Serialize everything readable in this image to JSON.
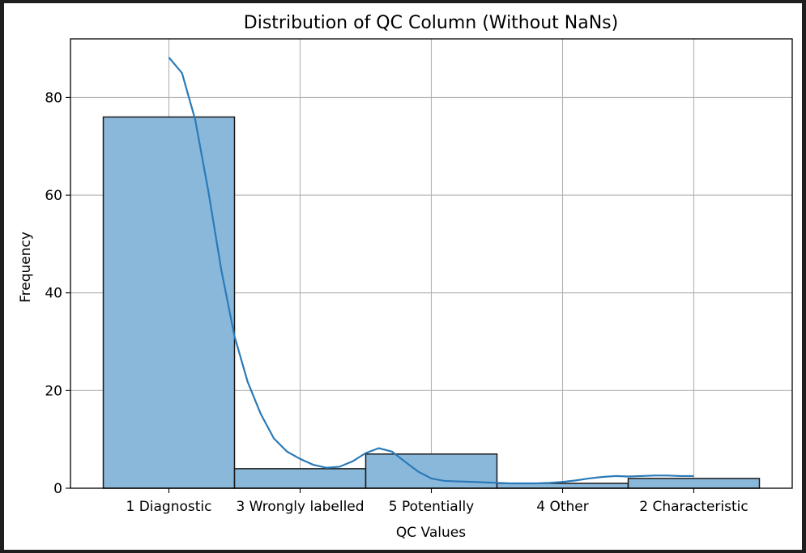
{
  "chart_data": {
    "type": "bar",
    "title": "Distribution of QC Column (Without NaNs)",
    "xlabel": "QC Values",
    "ylabel": "Frequency",
    "categories": [
      "1 Diagnostic",
      "3 Wrongly labelled",
      "5 Potentially",
      "4 Other",
      "2 Characteristic"
    ],
    "values": [
      76,
      4,
      7,
      1,
      2
    ],
    "ylim": [
      0,
      92
    ],
    "yticks": [
      0,
      20,
      40,
      60,
      80
    ],
    "grid": true,
    "kde": {
      "x": [
        0.0,
        0.1,
        0.2,
        0.3,
        0.4,
        0.5,
        0.6,
        0.7,
        0.8,
        0.9,
        1.0,
        1.1,
        1.2,
        1.3,
        1.4,
        1.5,
        1.6,
        1.7,
        1.8,
        1.9,
        2.0,
        2.1,
        2.2,
        2.3,
        2.4,
        2.5,
        2.6,
        2.7,
        2.8,
        2.9,
        3.0,
        3.1,
        3.2,
        3.3,
        3.4,
        3.5,
        3.6,
        3.7,
        3.8,
        3.9,
        4.0
      ],
      "y": [
        88.2,
        85.0,
        75.5,
        60.9,
        44.6,
        31.1,
        21.8,
        15.2,
        10.2,
        7.5,
        6.0,
        4.8,
        4.2,
        4.4,
        5.5,
        7.2,
        8.2,
        7.5,
        5.4,
        3.4,
        2.0,
        1.5,
        1.4,
        1.3,
        1.2,
        1.1,
        1.0,
        1.0,
        1.0,
        1.1,
        1.3,
        1.6,
        2.0,
        2.3,
        2.5,
        2.4,
        2.5,
        2.6,
        2.6,
        2.5,
        2.5
      ]
    },
    "colors": {
      "bar_fill": "#8ab8da",
      "bar_edge": "#1a1a1a",
      "kde_line": "#2a7ab8",
      "grid": "#b0b0b0"
    }
  }
}
